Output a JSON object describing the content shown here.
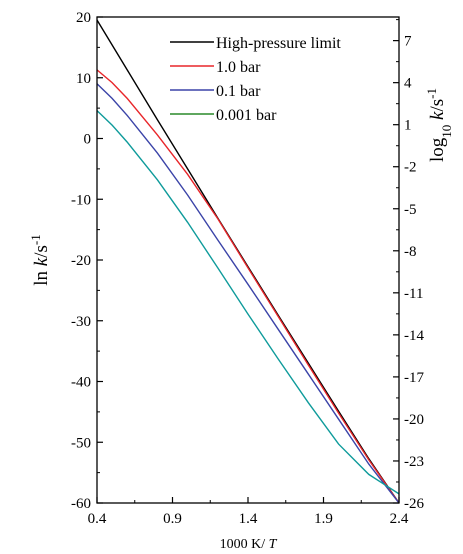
{
  "chart_data": {
    "type": "line",
    "xlabel": "1000 K/ T",
    "xlabel_prefix": "1000 K/ ",
    "xlabel_var": "T",
    "ylabel": "ln k/s-1",
    "ylabel_prefix": "ln ",
    "ylabel_var": "k",
    "ylabel_unit": "/s",
    "ylabel_sup": "-1",
    "y2label": "log10 k/s-1",
    "y2label_prefix": "log",
    "y2label_sub": "10",
    "y2label_var": " k",
    "y2label_unit": "/s",
    "y2label_sup": "-1",
    "xlim": [
      0.4,
      2.4
    ],
    "ylim": [
      -60,
      20
    ],
    "y2lim": [
      -26,
      8.686
    ],
    "x_ticks": [
      "0.4",
      "0.9",
      "1.4",
      "1.9",
      "2.4"
    ],
    "y_ticks": [
      "20",
      "10",
      "0",
      "-10",
      "-20",
      "-30",
      "-40",
      "-50",
      "-60"
    ],
    "y2_ticks": [
      "7",
      "4",
      "1",
      "-2",
      "-5",
      "-8",
      "-11",
      "-14",
      "-17",
      "-20",
      "-23",
      "-26"
    ],
    "legend_position": "top-right",
    "grid": false,
    "series": [
      {
        "name": "High-pressure limit",
        "color": "#000000",
        "x": [
          0.4,
          0.6,
          0.8,
          1.0,
          1.2,
          1.4,
          1.6,
          1.8,
          2.0,
          2.2,
          2.4
        ],
        "y": [
          19.5,
          11.3,
          3.1,
          -5.0,
          -13.1,
          -21.1,
          -29.1,
          -37.0,
          -44.9,
          -52.7,
          -60.0
        ]
      },
      {
        "name": "1.0 bar",
        "color": "#e8262a",
        "x": [
          0.4,
          0.5,
          0.6,
          0.8,
          1.0,
          1.2,
          1.4,
          1.6,
          1.8,
          2.0,
          2.2,
          2.4
        ],
        "y": [
          11.3,
          9.2,
          6.6,
          0.6,
          -5.9,
          -13.2,
          -21.3,
          -29.3,
          -37.3,
          -45.2,
          -52.9,
          -60.0
        ]
      },
      {
        "name": "0.1 bar",
        "color": "#3b44a8",
        "x": [
          0.4,
          0.5,
          0.6,
          0.8,
          1.0,
          1.2,
          1.4,
          1.6,
          1.8,
          2.0,
          2.2,
          2.4
        ],
        "y": [
          9.0,
          6.6,
          3.8,
          -2.4,
          -9.3,
          -16.7,
          -24.0,
          -31.4,
          -38.8,
          -46.2,
          -53.6,
          -60.0
        ]
      },
      {
        "name": "0.001 bar",
        "color": "#0f9b9b",
        "legend_color": "#2a8a2a",
        "x": [
          0.4,
          0.5,
          0.6,
          0.8,
          1.0,
          1.2,
          1.4,
          1.6,
          1.8,
          2.0,
          2.2,
          2.4
        ],
        "y": [
          4.6,
          2.2,
          -0.6,
          -6.8,
          -13.8,
          -21.3,
          -28.9,
          -36.3,
          -43.5,
          -50.3,
          -55.3,
          -58.5
        ]
      }
    ]
  }
}
